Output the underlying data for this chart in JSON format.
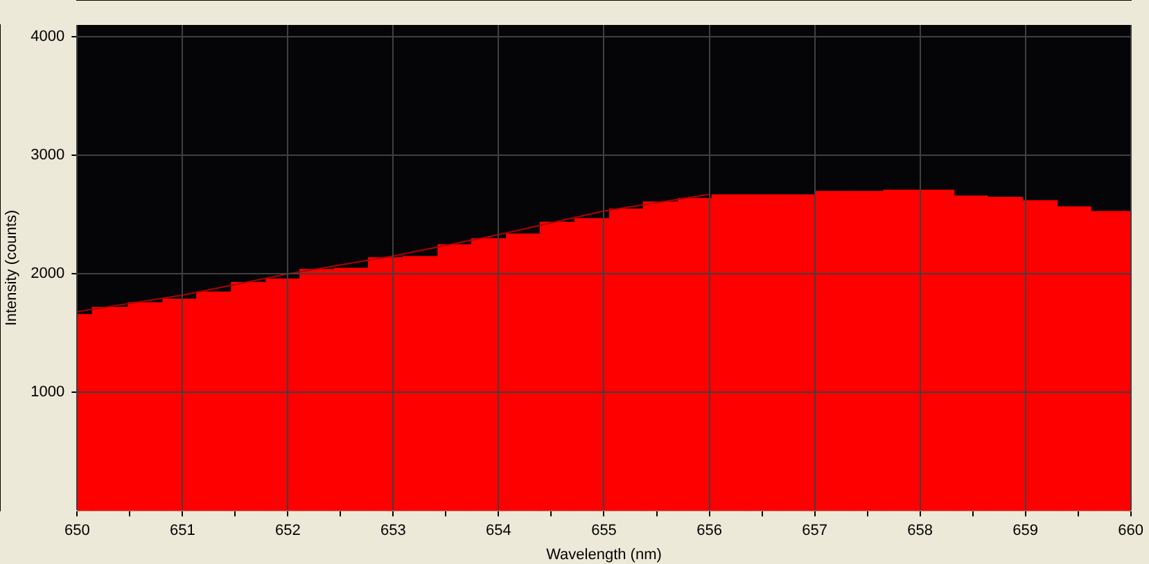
{
  "chart_data": {
    "type": "histogram",
    "xlabel": "Wavelength (nm)",
    "ylabel": "Intensity (counts)",
    "bins": [
      650,
      650.14,
      650.48,
      650.81,
      651.13,
      651.46,
      651.79,
      652.11,
      652.44,
      652.76,
      653.09,
      653.42,
      653.74,
      654.07,
      654.39,
      654.72,
      655.05,
      655.37,
      655.7,
      656.02,
      656.35,
      656.68,
      657,
      657.33,
      657.65,
      657.98,
      658.32,
      658.64,
      658.97,
      659.3,
      659.62,
      660
    ],
    "values": [
      1660,
      1720,
      1760,
      1790,
      1850,
      1930,
      1960,
      2040,
      2050,
      2140,
      2150,
      2250,
      2300,
      2340,
      2440,
      2470,
      2550,
      2610,
      2640,
      2670,
      2670,
      2670,
      2700,
      2700,
      2710,
      2710,
      2660,
      2650,
      2620,
      2570,
      2530
    ],
    "color": "#ff0000",
    "series": [
      {
        "type": "line",
        "color": "#b00000",
        "x": [
          650,
          651,
          652,
          653,
          654,
          655,
          656
        ],
        "values": [
          1680,
          1820,
          2000,
          2150,
          2330,
          2530,
          2670
        ]
      }
    ],
    "xlim": [
      650,
      660
    ],
    "ylim": [
      0,
      4100
    ],
    "xticks": [
      650,
      {
        "value": 650.5,
        "label": null
      },
      651,
      {
        "value": 651.5,
        "label": null
      },
      652,
      {
        "value": 652.5,
        "label": null
      },
      653,
      {
        "value": 653.5,
        "label": null
      },
      654,
      {
        "value": 654.5,
        "label": null
      },
      655,
      {
        "value": 655.5,
        "label": null
      },
      656,
      {
        "value": 656.5,
        "label": null
      },
      657,
      {
        "value": 657.5,
        "label": null
      },
      658,
      {
        "value": 658.5,
        "label": null
      },
      659,
      {
        "value": 659.5,
        "label": null
      },
      660
    ],
    "yticks": [
      1000,
      2000,
      3000,
      4000
    ],
    "grid": true
  }
}
